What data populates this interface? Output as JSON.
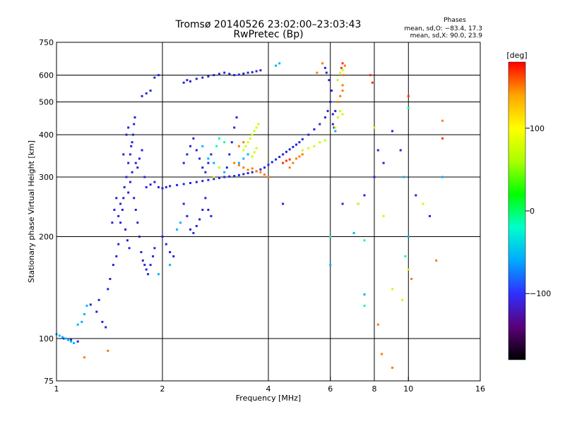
{
  "chart_data": {
    "type": "scatter",
    "title": "Tromsø 20140526 23:02:00–23:03:43",
    "subtitle": "RwPretec (Bp)",
    "xlabel": "Frequency [MHz]",
    "ylabel": "Stationary phase Virtual Height [km]",
    "x_scale": "log",
    "y_scale": "log",
    "xlim": [
      1,
      16
    ],
    "ylim": [
      75,
      750
    ],
    "x_ticks": [
      1,
      2,
      4,
      6,
      8,
      10,
      16
    ],
    "x_tick_labels": [
      "1",
      "2",
      "4",
      "6",
      "8",
      "10",
      "16"
    ],
    "x_grid": [
      2,
      4,
      6,
      8,
      10
    ],
    "y_ticks": [
      75,
      100,
      200,
      300,
      400,
      500,
      600,
      750
    ],
    "y_tick_labels": [
      "75",
      "100",
      "200",
      "300",
      "400",
      "500",
      "600",
      "750"
    ],
    "y_grid": [
      100,
      200,
      300,
      400,
      500,
      600
    ],
    "grid": true,
    "stats_title": "Phases",
    "stats_lines": [
      "mean, sd,O: −83.4, 17.3",
      "mean, sd,X:  90.0, 23.9"
    ],
    "colorbar": {
      "label": "[deg]",
      "range": [
        -180,
        180
      ],
      "ticks": [
        100,
        0,
        -100
      ],
      "tick_labels": [
        "100",
        "0",
        "−100"
      ],
      "colors": [
        "#000000",
        "#5a007a",
        "#2f2fff",
        "#00aaff",
        "#00ffcc",
        "#00ff00",
        "#aaff00",
        "#ffff00",
        "#ffa500",
        "#ff0000"
      ]
    },
    "series": [
      {
        "color": "#2424d8",
        "points": [
          [
            1.25,
            126
          ],
          [
            1.3,
            120
          ],
          [
            1.32,
            130
          ],
          [
            1.35,
            112
          ],
          [
            1.38,
            108
          ],
          [
            1.4,
            140
          ],
          [
            1.42,
            150
          ],
          [
            1.45,
            165
          ],
          [
            1.48,
            175
          ],
          [
            1.5,
            190
          ],
          [
            1.52,
            220
          ],
          [
            1.54,
            240
          ],
          [
            1.55,
            260
          ],
          [
            1.56,
            280
          ],
          [
            1.58,
            300
          ],
          [
            1.6,
            330
          ],
          [
            1.62,
            350
          ],
          [
            1.64,
            380
          ],
          [
            1.65,
            400
          ],
          [
            1.66,
            430
          ],
          [
            1.67,
            450
          ],
          [
            1.6,
            270
          ],
          [
            1.62,
            290
          ],
          [
            1.64,
            310
          ],
          [
            1.66,
            260
          ],
          [
            1.68,
            240
          ],
          [
            1.7,
            220
          ],
          [
            1.72,
            200
          ],
          [
            1.74,
            180
          ],
          [
            1.76,
            170
          ],
          [
            1.78,
            165
          ],
          [
            1.8,
            160
          ],
          [
            1.82,
            155
          ],
          [
            1.85,
            165
          ],
          [
            1.88,
            175
          ],
          [
            1.9,
            185
          ],
          [
            1.7,
            320
          ],
          [
            1.72,
            340
          ],
          [
            1.75,
            360
          ],
          [
            1.78,
            300
          ],
          [
            1.8,
            280
          ],
          [
            1.85,
            285
          ],
          [
            1.9,
            290
          ],
          [
            1.95,
            280
          ],
          [
            2.0,
            278
          ],
          [
            2.05,
            280
          ],
          [
            2.1,
            282
          ],
          [
            2.2,
            284
          ],
          [
            2.3,
            286
          ],
          [
            2.4,
            288
          ],
          [
            2.5,
            290
          ],
          [
            2.6,
            292
          ],
          [
            2.7,
            294
          ],
          [
            2.8,
            296
          ],
          [
            2.9,
            298
          ],
          [
            3.0,
            300
          ],
          [
            3.1,
            301
          ],
          [
            3.2,
            302
          ],
          [
            3.3,
            304
          ],
          [
            3.4,
            306
          ],
          [
            3.5,
            308
          ],
          [
            3.6,
            310
          ],
          [
            3.7,
            312
          ],
          [
            3.8,
            316
          ],
          [
            3.9,
            320
          ],
          [
            4.0,
            326
          ],
          [
            4.1,
            332
          ],
          [
            4.2,
            338
          ],
          [
            4.3,
            344
          ],
          [
            4.4,
            350
          ],
          [
            4.5,
            356
          ],
          [
            4.6,
            362
          ],
          [
            4.7,
            368
          ],
          [
            4.8,
            374
          ],
          [
            4.9,
            380
          ],
          [
            5.0,
            388
          ],
          [
            5.2,
            400
          ],
          [
            5.4,
            415
          ],
          [
            5.6,
            430
          ],
          [
            5.8,
            450
          ],
          [
            5.9,
            470
          ],
          [
            6.0,
            500
          ],
          [
            6.05,
            540
          ],
          [
            5.95,
            580
          ],
          [
            5.85,
            610
          ],
          [
            5.8,
            630
          ],
          [
            1.9,
            590
          ],
          [
            1.95,
            600
          ],
          [
            2.3,
            570
          ],
          [
            2.35,
            580
          ],
          [
            2.4,
            575
          ],
          [
            2.5,
            585
          ],
          [
            2.6,
            590
          ],
          [
            2.7,
            595
          ],
          [
            2.8,
            600
          ],
          [
            2.9,
            605
          ],
          [
            3.0,
            610
          ],
          [
            3.1,
            605
          ],
          [
            3.2,
            600
          ],
          [
            3.3,
            602
          ],
          [
            3.4,
            606
          ],
          [
            3.5,
            610
          ],
          [
            3.6,
            612
          ],
          [
            3.7,
            616
          ],
          [
            3.8,
            620
          ],
          [
            1.75,
            520
          ],
          [
            1.8,
            530
          ],
          [
            1.85,
            540
          ],
          [
            2.3,
            330
          ],
          [
            2.35,
            350
          ],
          [
            2.4,
            370
          ],
          [
            2.45,
            390
          ],
          [
            2.5,
            360
          ],
          [
            2.55,
            340
          ],
          [
            2.6,
            320
          ],
          [
            2.65,
            310
          ],
          [
            2.7,
            330
          ],
          [
            2.75,
            350
          ],
          [
            2.3,
            250
          ],
          [
            2.35,
            230
          ],
          [
            2.4,
            210
          ],
          [
            2.45,
            205
          ],
          [
            2.5,
            215
          ],
          [
            2.55,
            225
          ],
          [
            2.6,
            240
          ],
          [
            2.65,
            260
          ],
          [
            2.7,
            240
          ],
          [
            2.75,
            230
          ],
          [
            3.1,
            350
          ],
          [
            3.15,
            380
          ],
          [
            3.2,
            420
          ],
          [
            3.25,
            450
          ],
          [
            3.05,
            320
          ],
          [
            2.0,
            200
          ],
          [
            2.05,
            190
          ],
          [
            2.1,
            180
          ],
          [
            2.15,
            175
          ],
          [
            1.5,
            230
          ],
          [
            1.52,
            250
          ],
          [
            1.48,
            260
          ],
          [
            1.46,
            240
          ],
          [
            1.44,
            220
          ],
          [
            1.55,
            350
          ],
          [
            1.58,
            400
          ],
          [
            1.6,
            420
          ],
          [
            1.63,
            370
          ],
          [
            1.68,
            330
          ],
          [
            1.57,
            210
          ],
          [
            1.59,
            195
          ],
          [
            1.61,
            185
          ],
          [
            6.1,
            430
          ],
          [
            6.15,
            420
          ],
          [
            6.1,
            460
          ],
          [
            6.2,
            470
          ],
          [
            6.5,
            250
          ],
          [
            7.2,
            250
          ],
          [
            7.5,
            265
          ],
          [
            8.0,
            300
          ],
          [
            8.2,
            360
          ],
          [
            9.0,
            410
          ],
          [
            10.5,
            265
          ],
          [
            11.5,
            230
          ],
          [
            8.5,
            330
          ],
          [
            9.5,
            360
          ],
          [
            4.4,
            250
          ],
          [
            1.05,
            100
          ],
          [
            1.1,
            99
          ],
          [
            1.15,
            98
          ]
        ]
      },
      {
        "color": "#00b4ff",
        "points": [
          [
            1.0,
            103
          ],
          [
            1.02,
            102
          ],
          [
            1.04,
            101
          ],
          [
            1.06,
            100
          ],
          [
            1.08,
            99
          ],
          [
            1.1,
            98
          ],
          [
            1.12,
            97
          ],
          [
            1.15,
            110
          ],
          [
            1.18,
            112
          ],
          [
            1.2,
            118
          ],
          [
            1.22,
            125
          ],
          [
            2.7,
            340
          ],
          [
            2.8,
            330
          ],
          [
            2.9,
            320
          ],
          [
            3.0,
            310
          ],
          [
            2.6,
            370
          ],
          [
            3.3,
            330
          ],
          [
            3.4,
            340
          ],
          [
            3.5,
            350
          ],
          [
            2.2,
            210
          ],
          [
            2.25,
            220
          ],
          [
            1.95,
            155
          ],
          [
            2.1,
            165
          ],
          [
            4.2,
            640
          ],
          [
            4.3,
            650
          ],
          [
            6.2,
            410
          ],
          [
            7.0,
            205
          ],
          [
            7.5,
            135
          ],
          [
            9.7,
            300
          ],
          [
            10.0,
            200
          ],
          [
            12.5,
            300
          ],
          [
            6.0,
            165
          ]
        ]
      },
      {
        "color": "#ff7a00",
        "points": [
          [
            3.2,
            330
          ],
          [
            3.3,
            325
          ],
          [
            3.4,
            320
          ],
          [
            3.5,
            315
          ],
          [
            3.6,
            318
          ],
          [
            3.7,
            312
          ],
          [
            3.8,
            310
          ],
          [
            3.9,
            305
          ],
          [
            4.0,
            300
          ],
          [
            4.6,
            320
          ],
          [
            4.7,
            330
          ],
          [
            4.8,
            340
          ],
          [
            4.9,
            345
          ],
          [
            5.0,
            350
          ],
          [
            6.3,
            500
          ],
          [
            6.4,
            520
          ],
          [
            6.5,
            540
          ],
          [
            6.5,
            560
          ],
          [
            6.55,
            600
          ],
          [
            6.6,
            640
          ],
          [
            3.3,
            370
          ],
          [
            3.4,
            380
          ],
          [
            1.2,
            88
          ],
          [
            1.4,
            92
          ],
          [
            5.5,
            610
          ],
          [
            5.7,
            650
          ],
          [
            8.2,
            110
          ],
          [
            8.4,
            90
          ],
          [
            9.0,
            82
          ],
          [
            10.2,
            150
          ],
          [
            12.0,
            170
          ],
          [
            12.5,
            440
          ]
        ]
      },
      {
        "color": "#c8ff00",
        "points": [
          [
            3.4,
            360
          ],
          [
            3.45,
            370
          ],
          [
            3.5,
            380
          ],
          [
            3.55,
            390
          ],
          [
            3.6,
            400
          ],
          [
            3.65,
            410
          ],
          [
            3.7,
            420
          ],
          [
            3.75,
            430
          ],
          [
            3.6,
            345
          ],
          [
            3.65,
            355
          ],
          [
            3.7,
            365
          ],
          [
            5.0,
            360
          ],
          [
            5.2,
            365
          ],
          [
            5.4,
            370
          ],
          [
            5.6,
            380
          ],
          [
            5.8,
            385
          ],
          [
            6.2,
            420
          ],
          [
            6.3,
            450
          ],
          [
            6.4,
            470
          ],
          [
            6.5,
            460
          ],
          [
            6.3,
            580
          ],
          [
            6.4,
            610
          ],
          [
            6.5,
            620
          ],
          [
            2.8,
            300
          ],
          [
            2.9,
            320
          ],
          [
            7.2,
            250
          ],
          [
            8.0,
            420
          ],
          [
            8.5,
            230
          ],
          [
            9.0,
            140
          ],
          [
            9.6,
            130
          ],
          [
            10.0,
            160
          ],
          [
            11.0,
            250
          ]
        ]
      },
      {
        "color": "#ff3300",
        "points": [
          [
            4.4,
            330
          ],
          [
            4.5,
            335
          ],
          [
            4.6,
            338
          ],
          [
            6.45,
            630
          ],
          [
            6.5,
            650
          ],
          [
            7.8,
            600
          ],
          [
            7.9,
            570
          ],
          [
            10.0,
            520
          ],
          [
            12.5,
            390
          ]
        ]
      },
      {
        "color": "#00ffaa",
        "points": [
          [
            2.9,
            390
          ],
          [
            3.0,
            380
          ],
          [
            2.85,
            370
          ],
          [
            9.8,
            175
          ],
          [
            7.5,
            195
          ],
          [
            10.0,
            480
          ],
          [
            6.0,
            200
          ],
          [
            7.5,
            125
          ]
        ]
      }
    ]
  }
}
